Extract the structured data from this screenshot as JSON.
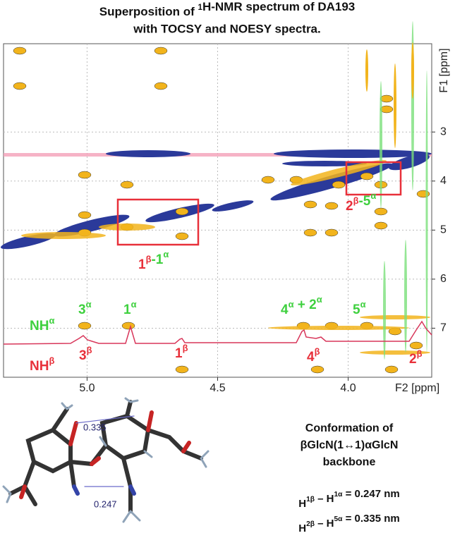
{
  "title": {
    "line1": [
      {
        "base": "Superposition of ",
        "sup": "1"
      },
      {
        "base": "H-NMR spectrum of DA193"
      }
    ],
    "line2": "with TOCSY and NOESY spectra."
  },
  "spectrum": {
    "x_label": "F2 [ppm]",
    "y_label": "F1 [ppm]",
    "xlim": [
      5.32,
      3.68
    ],
    "ylim": [
      1.2,
      8.0
    ],
    "xticks": [
      {
        "value": 5,
        "label": "5.0"
      },
      {
        "value": 4.5,
        "label": "4.5"
      },
      {
        "value": 4,
        "label": "4.0"
      }
    ],
    "yticks": [
      3,
      4,
      5,
      6,
      7
    ]
  },
  "annotations": [
    [
      {
        "base": "1",
        "sup": "β"
      },
      {
        "base": "-1",
        "sup": "α"
      }
    ],
    [
      {
        "base": "2",
        "sup": "β"
      },
      {
        "base": "-5",
        "sup": "α"
      }
    ],
    [
      {
        "base": "NH",
        "sup": "α"
      }
    ],
    [
      {
        "base": "3",
        "sup": "α"
      }
    ],
    [
      {
        "base": "1",
        "sup": "α"
      }
    ],
    [
      {
        "base": "4",
        "sup": "α"
      },
      {
        "base": " + 2",
        "sup": "α"
      }
    ],
    [
      {
        "base": "5",
        "sup": "α"
      }
    ],
    [
      {
        "base": "NH",
        "sup": "β"
      }
    ],
    [
      {
        "base": "3",
        "sup": "β"
      }
    ],
    [
      {
        "base": "1",
        "sup": "β"
      }
    ],
    [
      {
        "base": "4",
        "sup": "β"
      }
    ],
    [
      {
        "base": "2",
        "sup": "β"
      }
    ]
  ],
  "distances": [
    "0.335",
    "0.247"
  ],
  "conformation": [
    "Conformation of",
    "βGlcN(1↔1)αGlcN",
    "backbone"
  ],
  "equations": [
    [
      {
        "base": "H",
        "sup": "1β"
      },
      {
        "base": " – H",
        "sup": "1α"
      },
      {
        "base": " = 0.247 nm"
      }
    ],
    [
      {
        "base": "H",
        "sup": "2β"
      },
      {
        "base": " – H",
        "sup": "5α"
      },
      {
        "base": " = 0.335 nm"
      }
    ]
  ]
}
